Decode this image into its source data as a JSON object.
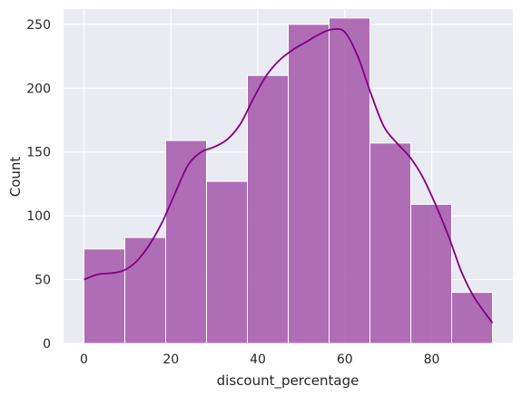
{
  "chart_data": {
    "type": "bar",
    "subtype": "histogram-with-kde",
    "xlabel": "discount_percentage",
    "ylabel": "Count",
    "xlim": [
      -4.7,
      98.7
    ],
    "ylim": [
      0,
      262
    ],
    "grid": true,
    "x_ticks": [
      0,
      20,
      40,
      60,
      80
    ],
    "y_ticks": [
      0,
      50,
      100,
      150,
      200,
      250
    ],
    "bins": [
      {
        "start": 0,
        "end": 9.4,
        "count": 74
      },
      {
        "start": 9.4,
        "end": 18.8,
        "count": 83
      },
      {
        "start": 18.8,
        "end": 28.2,
        "count": 159
      },
      {
        "start": 28.2,
        "end": 37.6,
        "count": 127
      },
      {
        "start": 37.6,
        "end": 47.0,
        "count": 210
      },
      {
        "start": 47.0,
        "end": 56.4,
        "count": 250
      },
      {
        "start": 56.4,
        "end": 65.8,
        "count": 255
      },
      {
        "start": 65.8,
        "end": 75.2,
        "count": 157
      },
      {
        "start": 75.2,
        "end": 84.6,
        "count": 109
      },
      {
        "start": 84.6,
        "end": 94.0,
        "count": 40
      }
    ],
    "kde": {
      "x": [
        0,
        3,
        6,
        9,
        12,
        15,
        18,
        21,
        24,
        27,
        30,
        33,
        36,
        39,
        42,
        45,
        48,
        51,
        54,
        57,
        60,
        63,
        66,
        69,
        72,
        75,
        78,
        81,
        84,
        87,
        90,
        94
      ],
      "y": [
        50,
        54,
        55,
        57,
        64,
        77,
        95,
        118,
        140,
        150,
        154,
        160,
        172,
        192,
        210,
        222,
        230,
        236,
        242,
        246,
        244,
        225,
        196,
        170,
        157,
        146,
        130,
        108,
        83,
        55,
        35,
        16
      ]
    },
    "colors": {
      "bar_fill": "#a95fae",
      "bar_edge": "#ffffff",
      "kde_line": "#800080",
      "plot_background": "#eaeaf2",
      "grid": "#ffffff"
    }
  }
}
